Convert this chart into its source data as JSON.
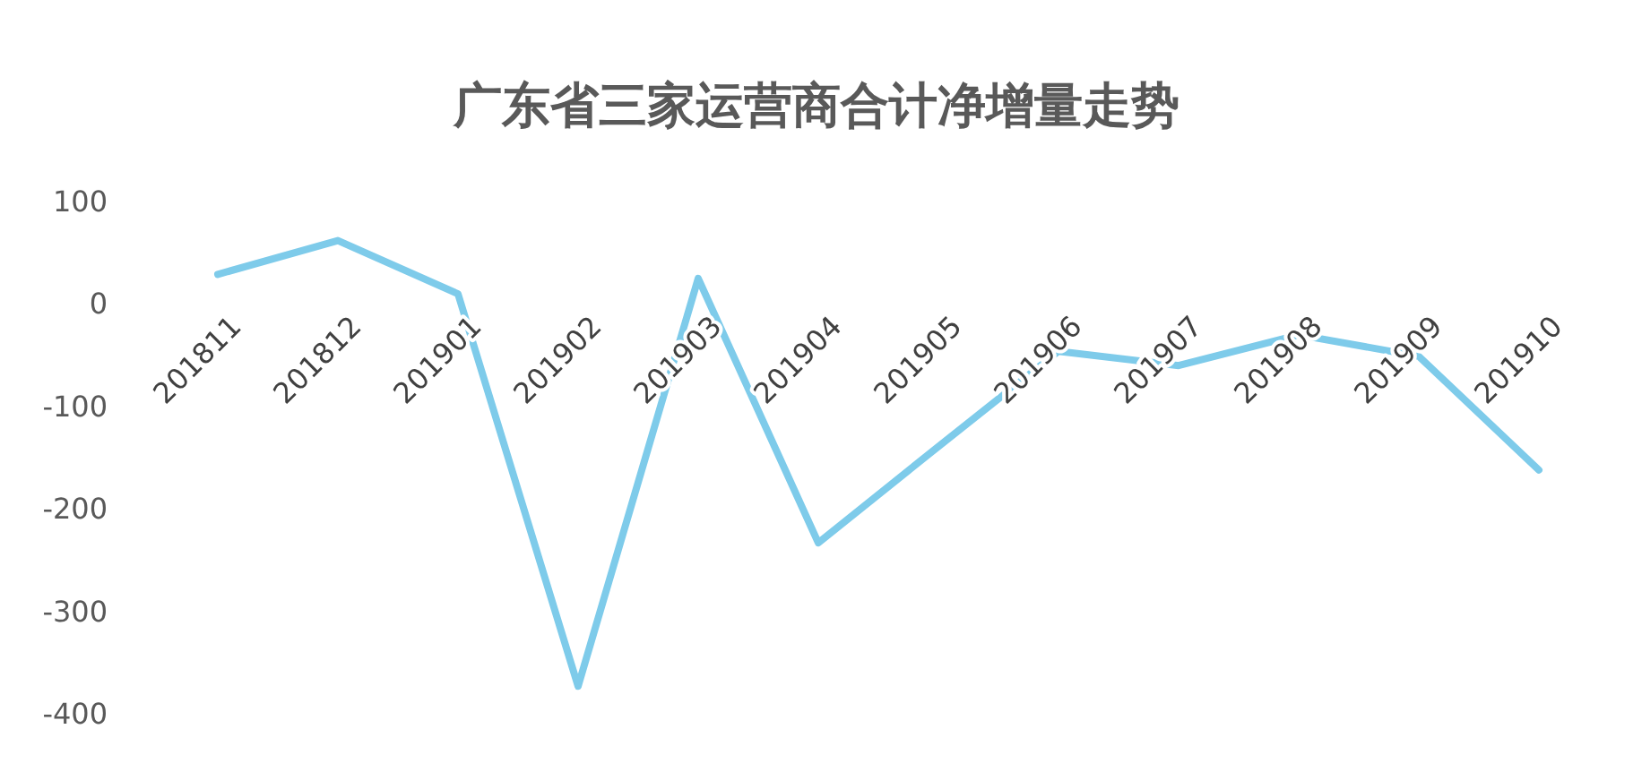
{
  "chart_data": {
    "type": "line",
    "title": "广东省三家运营商合计净增量走势",
    "categories": [
      "201811",
      "201812",
      "201901",
      "201902",
      "201903",
      "201904",
      "201905",
      "201906",
      "201907",
      "201908",
      "201909",
      "201910"
    ],
    "series": [
      {
        "color": "#7ecbea",
        "values": [
          28,
          61,
          9,
          -374,
          24,
          -234,
          -140,
          -47,
          -61,
          -31,
          -52,
          -163
        ]
      }
    ],
    "ylim": [
      -400,
      100
    ],
    "yticks": [
      -400,
      -300,
      -200,
      -100,
      0,
      100
    ],
    "grid": false,
    "marker": "none",
    "line_style": "solid"
  }
}
